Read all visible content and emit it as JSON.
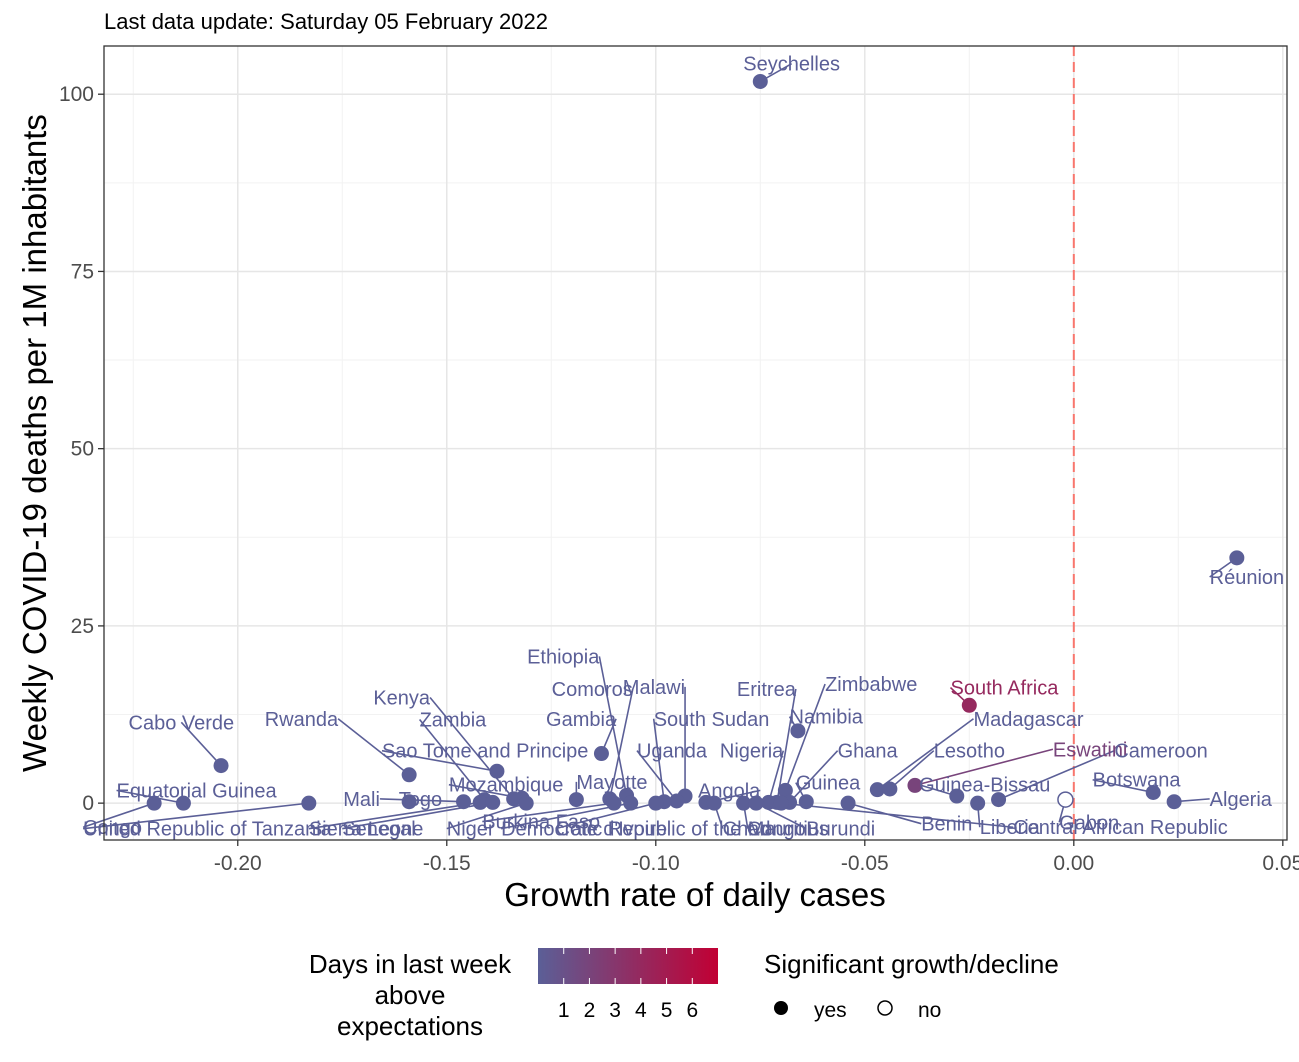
{
  "chart_data": {
    "type": "scatter",
    "subtitle": "Last data update: Saturday 05 February 2022",
    "xlabel": "Growth rate of daily cases",
    "ylabel": "Weekly COVID-19 deaths per 1M inhabitants",
    "xlim": [
      -0.232,
      0.051
    ],
    "ylim": [
      -5.2,
      106.8
    ],
    "xticks": [
      -0.2,
      -0.15,
      -0.1,
      -0.05,
      0.0,
      0.05
    ],
    "xtick_labels": [
      "-0.20",
      "-0.15",
      "-0.10",
      "-0.05",
      "0.00",
      "0.05"
    ],
    "yticks": [
      0,
      25,
      50,
      75,
      100
    ],
    "ytick_labels": [
      "0",
      "25",
      "50",
      "75",
      "100"
    ],
    "grid": true,
    "reference_line": {
      "x": 0.0,
      "color": "#f8766d",
      "style": "dashed"
    },
    "color_low": "#5b5f97",
    "color_high": "#c10034",
    "points": [
      {
        "name": "Seychelles",
        "x": -0.075,
        "y": 101.8,
        "days": 0,
        "sig": true
      },
      {
        "name": "Réunion",
        "x": 0.039,
        "y": 34.6,
        "days": 0,
        "sig": true
      },
      {
        "name": "South Africa",
        "x": -0.025,
        "y": 13.8,
        "days": 4,
        "sig": true
      },
      {
        "name": "Namibia",
        "x": -0.066,
        "y": 10.2,
        "days": 0,
        "sig": true
      },
      {
        "name": "Gambia",
        "x": -0.113,
        "y": 7.0,
        "days": 0,
        "sig": true
      },
      {
        "name": "Cabo Verde",
        "x": -0.204,
        "y": 5.3,
        "days": 0,
        "sig": true
      },
      {
        "name": "Sao Tome and Principe",
        "x": -0.138,
        "y": 4.5,
        "days": 0,
        "sig": true
      },
      {
        "name": "Rwanda",
        "x": -0.159,
        "y": 4.0,
        "days": 0,
        "sig": true
      },
      {
        "name": "Eswatini",
        "x": -0.038,
        "y": 2.5,
        "days": 2,
        "sig": true
      },
      {
        "name": "Zimbabwe",
        "x": -0.069,
        "y": 1.8,
        "days": 0,
        "sig": true
      },
      {
        "name": "Madagascar",
        "x": -0.047,
        "y": 1.9,
        "days": 0,
        "sig": true
      },
      {
        "name": "Lesotho",
        "x": -0.044,
        "y": 2.0,
        "days": 0,
        "sig": true
      },
      {
        "name": "Botswana",
        "x": 0.019,
        "y": 1.5,
        "days": 0,
        "sig": true
      },
      {
        "name": "Guinea-Bissau",
        "x": -0.028,
        "y": 1.0,
        "days": 0,
        "sig": true
      },
      {
        "name": "Ethiopia",
        "x": -0.107,
        "y": 1.1,
        "days": 0,
        "sig": true
      },
      {
        "name": "Comoros",
        "x": -0.111,
        "y": 0.6,
        "days": 0,
        "sig": true
      },
      {
        "name": "Malawi",
        "x": -0.093,
        "y": 1.0,
        "days": 0,
        "sig": true
      },
      {
        "name": "Mozambique",
        "x": -0.132,
        "y": 0.7,
        "days": 0,
        "sig": true
      },
      {
        "name": "Kenya",
        "x": -0.134,
        "y": 0.6,
        "days": 0,
        "sig": true
      },
      {
        "name": "Zambia",
        "x": -0.141,
        "y": 0.5,
        "days": 0,
        "sig": true
      },
      {
        "name": "Mayotte",
        "x": -0.119,
        "y": 0.5,
        "days": 0,
        "sig": true
      },
      {
        "name": "Cameroon",
        "x": -0.018,
        "y": 0.5,
        "days": 0,
        "sig": true
      },
      {
        "name": "Guinea",
        "x": -0.064,
        "y": 0.2,
        "days": 0,
        "sig": true
      },
      {
        "name": "Ghana",
        "x": -0.068,
        "y": 0.1,
        "days": 0,
        "sig": true
      },
      {
        "name": "Eritrea",
        "x": -0.071,
        "y": 0.1,
        "days": 0,
        "sig": true
      },
      {
        "name": "Algeria",
        "x": 0.024,
        "y": 0.2,
        "days": 0,
        "sig": true
      },
      {
        "name": "Gabon",
        "x": -0.002,
        "y": 0.5,
        "days": 0,
        "sig": false
      },
      {
        "name": "Togo",
        "x": -0.159,
        "y": 0.2,
        "days": 0,
        "sig": true
      },
      {
        "name": "Mali",
        "x": -0.146,
        "y": 0.2,
        "days": 0,
        "sig": true
      },
      {
        "name": "Uganda",
        "x": -0.095,
        "y": 0.3,
        "days": 0,
        "sig": true
      },
      {
        "name": "South Sudan",
        "x": -0.098,
        "y": 0.2,
        "days": 0,
        "sig": true
      },
      {
        "name": "Nigeria",
        "x": -0.073,
        "y": 0.1,
        "days": 0,
        "sig": true
      },
      {
        "name": "Angola",
        "x": -0.088,
        "y": 0.1,
        "days": 0,
        "sig": true
      },
      {
        "name": "Congo",
        "x": -0.22,
        "y": 0.0,
        "days": 0,
        "sig": true
      },
      {
        "name": "Equatorial Guinea",
        "x": -0.213,
        "y": 0.0,
        "days": 0,
        "sig": true
      },
      {
        "name": "United Republic of Tanzania",
        "x": -0.183,
        "y": 0.0,
        "days": 0,
        "sig": true
      },
      {
        "name": "Sierra Leone",
        "x": -0.142,
        "y": 0.1,
        "days": 0,
        "sig": true
      },
      {
        "name": "Senegal",
        "x": -0.139,
        "y": 0.1,
        "days": 0,
        "sig": true
      },
      {
        "name": "Niger",
        "x": -0.131,
        "y": 0.0,
        "days": 0,
        "sig": true
      },
      {
        "name": "Burkina Faso",
        "x": -0.11,
        "y": 0.0,
        "days": 0,
        "sig": true
      },
      {
        "name": "Democratic Republic of the Congo",
        "x": -0.106,
        "y": 0.0,
        "days": 0,
        "sig": true
      },
      {
        "name": "Cote d'Ivoire",
        "x": -0.1,
        "y": 0.0,
        "days": 0,
        "sig": true
      },
      {
        "name": "Chad",
        "x": -0.086,
        "y": 0.0,
        "days": 0,
        "sig": true
      },
      {
        "name": "Mauritius",
        "x": -0.079,
        "y": 0.0,
        "days": 0,
        "sig": true
      },
      {
        "name": "Burundi",
        "x": -0.076,
        "y": 0.0,
        "days": 0,
        "sig": true
      },
      {
        "name": "Benin",
        "x": -0.054,
        "y": 0.0,
        "days": 0,
        "sig": true
      },
      {
        "name": "Liberia",
        "x": -0.023,
        "y": 0.0,
        "days": 0,
        "sig": true
      },
      {
        "name": "Central African Republic",
        "x": -0.07,
        "y": 0.0,
        "days": 0,
        "sig": true
      }
    ],
    "labels": [
      {
        "text": "Seychelles",
        "lx": -0.0675,
        "ly": 104.3,
        "anchor": "middle",
        "point": 0
      },
      {
        "text": "Réunion",
        "lx": 0.0325,
        "ly": 31.9,
        "anchor": "start",
        "point": 1
      },
      {
        "text": "South Africa",
        "lx": -0.0295,
        "ly": 16.3,
        "anchor": "start",
        "point": 2
      },
      {
        "text": "Namibia",
        "lx": -0.068,
        "ly": 12.2,
        "anchor": "start",
        "point": 3
      },
      {
        "text": "Gambia",
        "lx": -0.1095,
        "ly": 11.9,
        "anchor": "end",
        "point": 4
      },
      {
        "text": "Cabo Verde",
        "lx": -0.2135,
        "ly": 11.4,
        "anchor": "middle",
        "point": 5
      },
      {
        "text": "Sao Tome and Principe",
        "lx": -0.1655,
        "ly": 7.4,
        "anchor": "start",
        "point": 6
      },
      {
        "text": "Rwanda",
        "lx": -0.176,
        "ly": 11.9,
        "anchor": "end",
        "point": 7
      },
      {
        "text": "Eswatini",
        "lx": -0.005,
        "ly": 7.6,
        "anchor": "start",
        "point": 8
      },
      {
        "text": "Zimbabwe",
        "lx": -0.0595,
        "ly": 16.8,
        "anchor": "start",
        "point": 9
      },
      {
        "text": "Madagascar",
        "lx": -0.024,
        "ly": 11.9,
        "anchor": "start",
        "point": 10
      },
      {
        "text": "Lesotho",
        "lx": -0.0335,
        "ly": 7.4,
        "anchor": "start",
        "point": 11
      },
      {
        "text": "Botswana",
        "lx": 0.0045,
        "ly": 3.3,
        "anchor": "start",
        "point": 12
      },
      {
        "text": "Guinea-Bissau",
        "lx": -0.037,
        "ly": 2.6,
        "anchor": "start",
        "point": 13
      },
      {
        "text": "Ethiopia",
        "lx": -0.1135,
        "ly": 20.7,
        "anchor": "end",
        "point": 14
      },
      {
        "text": "Comoros",
        "lx": -0.1055,
        "ly": 16.1,
        "anchor": "end",
        "point": 15
      },
      {
        "text": "Malawi",
        "lx": -0.093,
        "ly": 16.4,
        "anchor": "end",
        "point": 16
      },
      {
        "text": "Mozambique",
        "lx": -0.1495,
        "ly": 2.6,
        "anchor": "start",
        "point": 17
      },
      {
        "text": "Kenya",
        "lx": -0.154,
        "ly": 14.9,
        "anchor": "end",
        "point": 18
      },
      {
        "text": "Zambia",
        "lx": -0.1565,
        "ly": 11.8,
        "anchor": "start",
        "point": 19
      },
      {
        "text": "Mayotte",
        "lx": -0.119,
        "ly": 3.0,
        "anchor": "start",
        "point": 20
      },
      {
        "text": "Cameroon",
        "lx": 0.0097,
        "ly": 7.4,
        "anchor": "start",
        "point": 21
      },
      {
        "text": "Guinea",
        "lx": -0.0665,
        "ly": 2.9,
        "anchor": "start",
        "point": 22
      },
      {
        "text": "Ghana",
        "lx": -0.0565,
        "ly": 7.4,
        "anchor": "start",
        "point": 23
      },
      {
        "text": "Eritrea",
        "lx": -0.0665,
        "ly": 16.1,
        "anchor": "end",
        "point": 24
      },
      {
        "text": "Algeria",
        "lx": 0.0325,
        "ly": 0.6,
        "anchor": "start",
        "point": 25
      },
      {
        "text": "Gabon",
        "lx": -0.0035,
        "ly": -2.7,
        "anchor": "start",
        "point": 26
      },
      {
        "text": "Togo",
        "lx": -0.1615,
        "ly": 0.6,
        "anchor": "start",
        "point": 27
      },
      {
        "text": "Mali",
        "lx": -0.166,
        "ly": 0.6,
        "anchor": "end",
        "point": 28
      },
      {
        "text": "Uganda",
        "lx": -0.1045,
        "ly": 7.4,
        "anchor": "start",
        "point": 29
      },
      {
        "text": "South Sudan",
        "lx": -0.1005,
        "ly": 11.9,
        "anchor": "start",
        "point": 30
      },
      {
        "text": "Nigeria",
        "lx": -0.0695,
        "ly": 7.4,
        "anchor": "end",
        "point": 31
      },
      {
        "text": "Angola",
        "lx": -0.075,
        "ly": 1.8,
        "anchor": "end",
        "point": 32
      },
      {
        "text": "Congo",
        "lx": -0.237,
        "ly": -3.4,
        "anchor": "start",
        "point": 33
      },
      {
        "text": "Equatorial Guinea",
        "lx": -0.229,
        "ly": 1.8,
        "anchor": "start",
        "point": 34
      },
      {
        "text": "United Republic of Tanzania",
        "lx": -0.237,
        "ly": -3.6,
        "anchor": "start",
        "point": 35
      },
      {
        "text": "Sierra Leone",
        "lx": -0.183,
        "ly": -3.6,
        "anchor": "start",
        "point": 36
      },
      {
        "text": "Senegal",
        "lx": -0.175,
        "ly": -3.6,
        "anchor": "start",
        "point": 37
      },
      {
        "text": "Niger",
        "lx": -0.15,
        "ly": -3.6,
        "anchor": "start",
        "point": 38
      },
      {
        "text": "Burkina Faso",
        "lx": -0.1415,
        "ly": -2.6,
        "anchor": "start",
        "point": 39
      },
      {
        "text": "Democratic Republic of the Congo",
        "lx": -0.137,
        "ly": -3.6,
        "anchor": "start",
        "point": 40
      },
      {
        "text": "Cote d'Ivoire",
        "lx": -0.124,
        "ly": -3.6,
        "anchor": "start",
        "point": 41
      },
      {
        "text": "Chad",
        "lx": -0.084,
        "ly": -3.6,
        "anchor": "start",
        "point": 42
      },
      {
        "text": "Mauritius",
        "lx": -0.078,
        "ly": -3.6,
        "anchor": "start",
        "point": 43
      },
      {
        "text": "Burundi",
        "lx": -0.064,
        "ly": -3.6,
        "anchor": "start",
        "point": 44
      },
      {
        "text": "Benin",
        "lx": -0.0365,
        "ly": -2.9,
        "anchor": "start",
        "point": 45
      },
      {
        "text": "Liberia",
        "lx": -0.0225,
        "ly": -3.4,
        "anchor": "start",
        "point": 46
      },
      {
        "text": "Central African Republic",
        "lx": -0.0145,
        "ly": -3.4,
        "anchor": "start",
        "point": 47
      }
    ],
    "legend_color": {
      "title_lines": [
        "Days in last week",
        "above",
        "expectations"
      ],
      "breaks": [
        "1",
        "2",
        "3",
        "4",
        "5",
        "6"
      ]
    },
    "legend_shape": {
      "title": "Significant growth/decline",
      "items": [
        {
          "label": "yes",
          "filled": true
        },
        {
          "label": "no",
          "filled": false
        }
      ]
    }
  }
}
